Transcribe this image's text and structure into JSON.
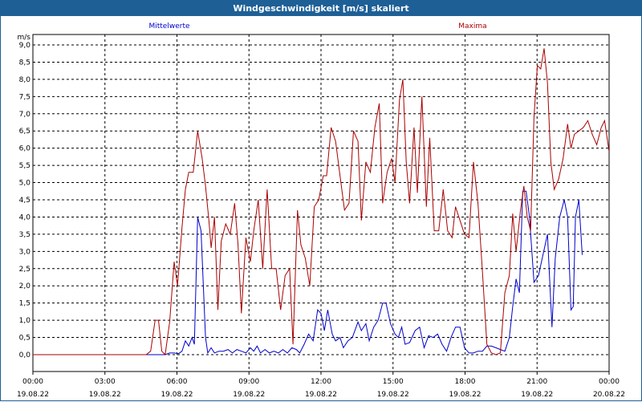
{
  "window": {
    "title": "Windgeschwindigkeit [m/s] skaliert"
  },
  "colors": {
    "titlebar": "#1e5f96",
    "mittelwerte": "#0000cc",
    "maxima": "#aa0000",
    "grid": "#000000"
  },
  "chart_data": {
    "type": "line",
    "title": "Windgeschwindigkeit [m/s] skaliert",
    "ylabel": "m/s",
    "xlabel": "",
    "ylim": [
      0,
      9.0
    ],
    "yticks": [
      0,
      0.5,
      1.0,
      1.5,
      2.0,
      2.5,
      3.0,
      3.5,
      4.0,
      4.5,
      5.0,
      5.5,
      6.0,
      6.5,
      7.0,
      7.5,
      8.0,
      8.5,
      9.0
    ],
    "ytick_labels": [
      "0,0",
      "0,5",
      "1,0",
      "1,5",
      "2,0",
      "2,5",
      "3,0",
      "3,5",
      "4,0",
      "4,5",
      "5,0",
      "5,5",
      "6,0",
      "6,5",
      "7,0",
      "7,5",
      "8,0",
      "8,5",
      "9,0"
    ],
    "xlim": [
      0,
      24
    ],
    "xticks": [
      {
        "x": 0,
        "time": "00:00",
        "date": "19.08.22"
      },
      {
        "x": 3,
        "time": "03:00",
        "date": "19.08.22"
      },
      {
        "x": 6,
        "time": "06:00",
        "date": "19.08.22"
      },
      {
        "x": 9,
        "time": "09:00",
        "date": "19.08.22"
      },
      {
        "x": 12,
        "time": "12:00",
        "date": "19.08.22"
      },
      {
        "x": 15,
        "time": "15:00",
        "date": "19.08.22"
      },
      {
        "x": 18,
        "time": "18:00",
        "date": "19.08.22"
      },
      {
        "x": 21,
        "time": "21:00",
        "date": "19.08.22"
      },
      {
        "x": 24,
        "time": "00:00",
        "date": "20.08.22"
      }
    ],
    "grid": true,
    "series": [
      {
        "name": "Mittelwerte",
        "color": "#0000cc",
        "points": [
          [
            0,
            0
          ],
          [
            5.2,
            0
          ],
          [
            5.5,
            0
          ],
          [
            5.9,
            0
          ],
          [
            6.1,
            0.05
          ],
          [
            6.3,
            0.05
          ],
          [
            6.5,
            0.03
          ],
          [
            6.65,
            0.1
          ],
          [
            6.8,
            0.4
          ],
          [
            6.95,
            0.25
          ],
          [
            7.1,
            0.5
          ],
          [
            7.2,
            0.3
          ],
          [
            7.35,
            4.0
          ],
          [
            7.5,
            3.6
          ],
          [
            7.7,
            0.5
          ],
          [
            7.8,
            0.05
          ],
          [
            7.95,
            0.2
          ],
          [
            8.1,
            0.05
          ],
          [
            8.3,
            0.1
          ],
          [
            8.5,
            0.1
          ],
          [
            8.7,
            0.15
          ],
          [
            8.9,
            0.05
          ],
          [
            9.1,
            0.15
          ],
          [
            9.3,
            0.1
          ],
          [
            9.5,
            0.05
          ],
          [
            9.7,
            0.2
          ],
          [
            9.85,
            0.1
          ],
          [
            10.0,
            0.25
          ],
          [
            10.15,
            0.05
          ],
          [
            10.35,
            0.15
          ],
          [
            10.55,
            0.05
          ],
          [
            10.75,
            0.1
          ],
          [
            10.95,
            0.05
          ],
          [
            11.15,
            0.15
          ],
          [
            11.35,
            0.05
          ],
          [
            11.55,
            0.2
          ],
          [
            11.75,
            0.15
          ],
          [
            11.9,
            0.05
          ],
          [
            12.1,
            0.3
          ],
          [
            12.3,
            0.6
          ],
          [
            12.5,
            0.4
          ],
          [
            12.7,
            1.3
          ],
          [
            12.85,
            1.2
          ],
          [
            13.0,
            0.7
          ],
          [
            13.15,
            1.3
          ],
          [
            13.35,
            0.6
          ],
          [
            13.5,
            0.4
          ],
          [
            13.7,
            0.5
          ],
          [
            13.85,
            0.2
          ],
          [
            14.05,
            0.4
          ],
          [
            14.25,
            0.5
          ],
          [
            14.5,
            0.95
          ],
          [
            14.65,
            0.7
          ],
          [
            14.85,
            0.9
          ],
          [
            15.0,
            0.4
          ],
          [
            15.2,
            0.8
          ],
          [
            15.4,
            1.0
          ],
          [
            15.6,
            1.5
          ],
          [
            15.75,
            1.5
          ],
          [
            15.95,
            0.9
          ],
          [
            16.15,
            0.6
          ],
          [
            16.3,
            0.5
          ],
          [
            16.45,
            0.8
          ],
          [
            16.6,
            0.3
          ],
          [
            16.8,
            0.35
          ],
          [
            17.05,
            0.7
          ],
          [
            17.25,
            0.8
          ],
          [
            17.45,
            0.2
          ],
          [
            17.65,
            0.55
          ],
          [
            17.85,
            0.5
          ],
          [
            18.05,
            0.6
          ],
          [
            18.25,
            0.3
          ],
          [
            18.45,
            0.1
          ],
          [
            18.65,
            0.5
          ],
          [
            18.85,
            0.8
          ],
          [
            19.05,
            0.8
          ],
          [
            19.25,
            0.2
          ],
          [
            19.45,
            0.05
          ],
          [
            19.65,
            0.05
          ],
          [
            19.85,
            0.1
          ],
          [
            20.05,
            0.1
          ],
          [
            20.25,
            0.25
          ],
          [
            20.45,
            0.25
          ],
          [
            20.65,
            0.2
          ],
          [
            20.85,
            0.15
          ],
          [
            21.05,
            0.1
          ],
          [
            21.25,
            0.5
          ],
          [
            21.4,
            1.4
          ],
          [
            21.55,
            2.2
          ],
          [
            21.7,
            1.8
          ],
          [
            21.85,
            4.75
          ],
          [
            22.0,
            4.75
          ],
          [
            22.15,
            4.0
          ],
          [
            22.35,
            2.1
          ],
          [
            22.55,
            2.3
          ],
          [
            22.75,
            2.9
          ],
          [
            22.95,
            3.5
          ],
          [
            23.15,
            0.8
          ],
          [
            23.3,
            2.8
          ],
          [
            23.5,
            4.0
          ],
          [
            23.7,
            4.5
          ],
          [
            23.85,
            4.0
          ],
          [
            24.0,
            1.3
          ],
          [
            24.1,
            1.4
          ],
          [
            24.2,
            4.0
          ],
          [
            24.35,
            4.5
          ],
          [
            24.5,
            2.9
          ]
        ]
      },
      {
        "name": "Maxima",
        "color": "#aa0000",
        "points": [
          [
            0,
            0
          ],
          [
            5.05,
            0
          ],
          [
            5.25,
            0.1
          ],
          [
            5.45,
            1.0
          ],
          [
            5.6,
            1.0
          ],
          [
            5.75,
            0.1
          ],
          [
            5.9,
            0
          ],
          [
            6.1,
            0.95
          ],
          [
            6.3,
            2.7
          ],
          [
            6.45,
            2.0
          ],
          [
            6.65,
            3.7
          ],
          [
            6.8,
            4.8
          ],
          [
            6.95,
            5.3
          ],
          [
            7.15,
            5.3
          ],
          [
            7.35,
            6.5
          ],
          [
            7.55,
            5.7
          ],
          [
            7.7,
            4.9
          ],
          [
            7.85,
            3.9
          ],
          [
            7.95,
            3.1
          ],
          [
            8.1,
            4.0
          ],
          [
            8.25,
            1.3
          ],
          [
            8.4,
            3.3
          ],
          [
            8.6,
            3.8
          ],
          [
            8.8,
            3.5
          ],
          [
            9.0,
            4.4
          ],
          [
            9.15,
            3.2
          ],
          [
            9.3,
            1.2
          ],
          [
            9.5,
            3.4
          ],
          [
            9.7,
            2.7
          ],
          [
            9.85,
            3.6
          ],
          [
            10.05,
            4.5
          ],
          [
            10.25,
            2.5
          ],
          [
            10.45,
            4.8
          ],
          [
            10.65,
            2.5
          ],
          [
            10.85,
            2.5
          ],
          [
            11.05,
            1.3
          ],
          [
            11.25,
            2.3
          ],
          [
            11.45,
            2.5
          ],
          [
            11.6,
            0.3
          ],
          [
            11.8,
            4.2
          ],
          [
            11.95,
            3.2
          ],
          [
            12.15,
            2.8
          ],
          [
            12.35,
            2.0
          ],
          [
            12.55,
            4.3
          ],
          [
            12.75,
            4.5
          ],
          [
            12.95,
            5.2
          ],
          [
            13.1,
            5.2
          ],
          [
            13.3,
            6.6
          ],
          [
            13.5,
            6.2
          ],
          [
            13.7,
            5.2
          ],
          [
            13.9,
            4.2
          ],
          [
            14.1,
            4.4
          ],
          [
            14.3,
            6.5
          ],
          [
            14.5,
            6.2
          ],
          [
            14.65,
            3.9
          ],
          [
            14.85,
            5.6
          ],
          [
            15.05,
            5.3
          ],
          [
            15.25,
            6.6
          ],
          [
            15.45,
            7.3
          ],
          [
            15.6,
            4.4
          ],
          [
            15.8,
            5.3
          ],
          [
            16.0,
            5.7
          ],
          [
            16.15,
            5.0
          ],
          [
            16.35,
            7.4
          ],
          [
            16.5,
            8.0
          ],
          [
            16.65,
            5.6
          ],
          [
            16.8,
            4.4
          ],
          [
            17.0,
            6.6
          ],
          [
            17.15,
            4.7
          ],
          [
            17.35,
            7.5
          ],
          [
            17.55,
            4.3
          ],
          [
            17.7,
            6.3
          ],
          [
            17.9,
            3.6
          ],
          [
            18.1,
            3.6
          ],
          [
            18.3,
            4.8
          ],
          [
            18.5,
            3.6
          ],
          [
            18.7,
            3.4
          ],
          [
            18.85,
            4.3
          ],
          [
            19.05,
            3.9
          ],
          [
            19.25,
            3.5
          ],
          [
            19.45,
            3.4
          ],
          [
            19.65,
            5.6
          ],
          [
            19.85,
            4.4
          ],
          [
            20.05,
            2.4
          ],
          [
            20.25,
            0.3
          ],
          [
            20.45,
            0.05
          ],
          [
            20.65,
            0
          ],
          [
            20.85,
            0.05
          ],
          [
            21.05,
            1.8
          ],
          [
            21.25,
            2.3
          ],
          [
            21.4,
            4.1
          ],
          [
            21.55,
            3.0
          ],
          [
            21.75,
            4.2
          ],
          [
            21.9,
            4.9
          ],
          [
            22.05,
            4.0
          ],
          [
            22.2,
            3.6
          ],
          [
            22.35,
            6.9
          ],
          [
            22.5,
            8.4
          ],
          [
            22.65,
            8.3
          ],
          [
            22.8,
            8.9
          ],
          [
            22.95,
            7.9
          ],
          [
            23.1,
            5.6
          ],
          [
            23.25,
            4.8
          ],
          [
            23.45,
            5.1
          ],
          [
            23.65,
            5.7
          ],
          [
            23.85,
            6.7
          ],
          [
            24.0,
            6.0
          ],
          [
            24.15,
            6.4
          ],
          [
            24.35,
            6.5
          ],
          [
            24.55,
            6.6
          ],
          [
            24.75,
            6.8
          ],
          [
            24.95,
            6.4
          ],
          [
            25.15,
            6.1
          ],
          [
            25.35,
            6.6
          ],
          [
            25.5,
            6.8
          ],
          [
            25.7,
            5.9
          ]
        ]
      }
    ]
  }
}
